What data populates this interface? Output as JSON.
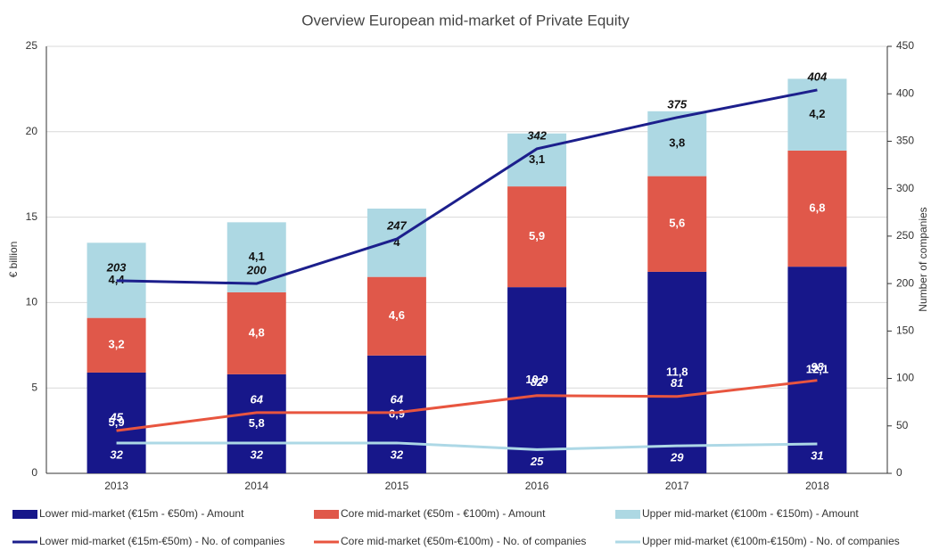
{
  "chart_data": {
    "type": "bar",
    "title": "Overview European mid-market of Private Equity",
    "ylabel": "€ billion",
    "y2label": "Number of companies",
    "categories": [
      "2013",
      "2014",
      "2015",
      "2016",
      "2017",
      "2018"
    ],
    "ylim": [
      0,
      25
    ],
    "yticks": [
      0,
      5,
      10,
      15,
      20,
      25
    ],
    "y2lim": [
      0,
      450
    ],
    "y2ticks": [
      0,
      50,
      100,
      150,
      200,
      250,
      300,
      350,
      400,
      450
    ],
    "grid": true,
    "series": [
      {
        "name": "Lower mid-market (€15m - €50m) - Amount",
        "type": "bar",
        "color": "#17178a",
        "values": [
          5.9,
          5.8,
          6.9,
          10.9,
          11.8,
          12.1
        ],
        "value_labels": [
          "5,9",
          "5,8",
          "6,9",
          "10,9",
          "11,8",
          "12,1"
        ]
      },
      {
        "name": "Core mid-market (€50m - €100m) - Amount",
        "type": "bar",
        "color": "#e0584a",
        "values": [
          3.2,
          4.8,
          4.6,
          5.9,
          5.6,
          6.8
        ],
        "value_labels": [
          "3,2",
          "4,8",
          "4,6",
          "5,9",
          "5,6",
          "6,8"
        ]
      },
      {
        "name": "Upper mid-market (€100m - €150m) - Amount",
        "type": "bar",
        "color": "#add8e3",
        "values": [
          4.4,
          4.1,
          4,
          3.1,
          3.8,
          4.2
        ],
        "value_labels": [
          "4,4",
          "4,1",
          "4",
          "3,1",
          "3,8",
          "4,2"
        ]
      },
      {
        "name": "Lower mid-market (€15m-€50m) - No. of companies",
        "type": "line",
        "axis": "y2",
        "color": "#1c1f8c",
        "values": [
          203,
          200,
          247,
          342,
          375,
          404
        ]
      },
      {
        "name": "Core mid-market (€50m-€100m) - No. of companies",
        "type": "line",
        "axis": "y2",
        "color": "#e8553f",
        "values": [
          45,
          64,
          64,
          82,
          81,
          98
        ]
      },
      {
        "name": "Upper mid-market (€100m-€150m) - No. of companies",
        "type": "line",
        "axis": "y2",
        "color": "#add8e6",
        "values": [
          32,
          32,
          32,
          25,
          29,
          31
        ]
      }
    ]
  }
}
